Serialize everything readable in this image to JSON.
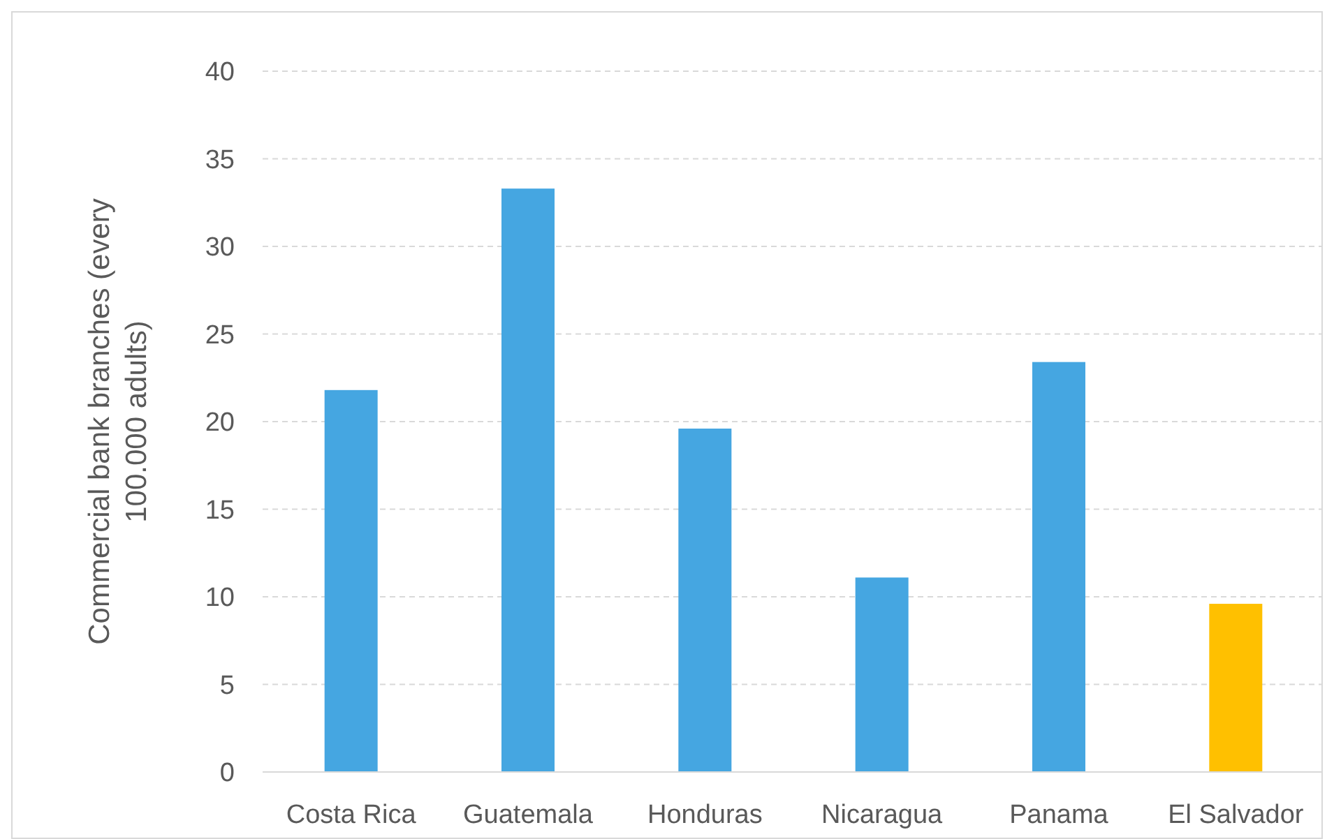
{
  "chart_data": {
    "type": "bar",
    "ylabel": "Commercial bank branches (every 100.000 adults)",
    "categories": [
      "Costa Rica",
      "Guatemala",
      "Honduras",
      "Nicaragua",
      "Panama",
      "El Salvador"
    ],
    "values": [
      21.8,
      33.3,
      19.6,
      11.1,
      23.4,
      9.6
    ],
    "colors": [
      "#45a6e1",
      "#45a6e1",
      "#45a6e1",
      "#45a6e1",
      "#45a6e1",
      "#ffc000"
    ],
    "ylim": [
      0,
      40
    ],
    "yticks": [
      0,
      5,
      10,
      15,
      20,
      25,
      30,
      35,
      40
    ],
    "grid": "y"
  }
}
